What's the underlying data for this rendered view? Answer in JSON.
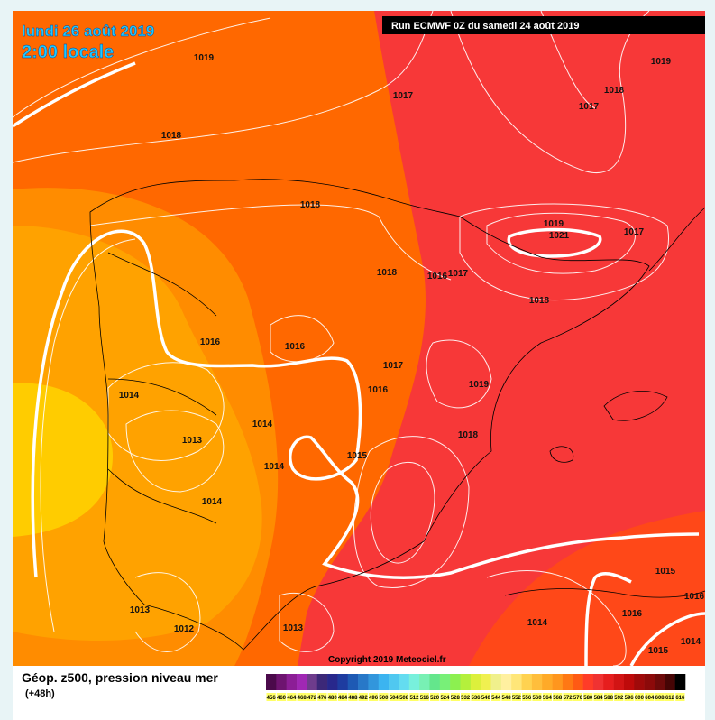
{
  "header": {
    "date": "lundi 26 août 2019",
    "time": "2:00 locale",
    "run": "Run ECMWF 0Z du samedi 24 août 2019"
  },
  "isobar_labels": [
    1019,
    1017,
    1018,
    1018,
    1017,
    1019,
    1018,
    1019,
    1021,
    1017,
    1018,
    1016,
    1017,
    1018,
    1016,
    1016,
    1017,
    1014,
    1016,
    1019,
    1014,
    1013,
    1018,
    1015,
    1014,
    1014,
    1015,
    1016,
    1013,
    1016,
    1012,
    1013,
    1014,
    1014,
    1015
  ],
  "footer": {
    "copyright": "Copyright 2019 Meteociel.fr"
  },
  "legend": {
    "title": "Géop. z500, pression niveau mer",
    "lead_time": "(+48h)",
    "scale": [
      456,
      460,
      464,
      468,
      472,
      476,
      480,
      484,
      488,
      492,
      496,
      500,
      504,
      508,
      512,
      516,
      520,
      524,
      528,
      532,
      536,
      540,
      544,
      548,
      552,
      556,
      560,
      564,
      568,
      572,
      576,
      580,
      584,
      588,
      592,
      596,
      600,
      604,
      608,
      612,
      616
    ],
    "colors": [
      "#4b0a4b",
      "#6e1470",
      "#8c1e96",
      "#a028b4",
      "#6e3c8c",
      "#3c2878",
      "#28288c",
      "#1e3ca0",
      "#1e5ab4",
      "#2878c8",
      "#3296dc",
      "#3cb4f0",
      "#50c8f0",
      "#64dcf0",
      "#78f0dc",
      "#78f0b4",
      "#64e68c",
      "#78f078",
      "#8cf050",
      "#b4f03c",
      "#dcf03c",
      "#f0f050",
      "#f0f08c",
      "#fff0a0",
      "#ffe678",
      "#ffd250",
      "#ffbe3c",
      "#ffaa28",
      "#ff961e",
      "#ff7814",
      "#ff5a14",
      "#ff3c28",
      "#f03232",
      "#e61e1e",
      "#d21414",
      "#be0a0a",
      "#a00a0a",
      "#8c0a0a",
      "#6e0a0a",
      "#460505",
      "#000000"
    ]
  }
}
